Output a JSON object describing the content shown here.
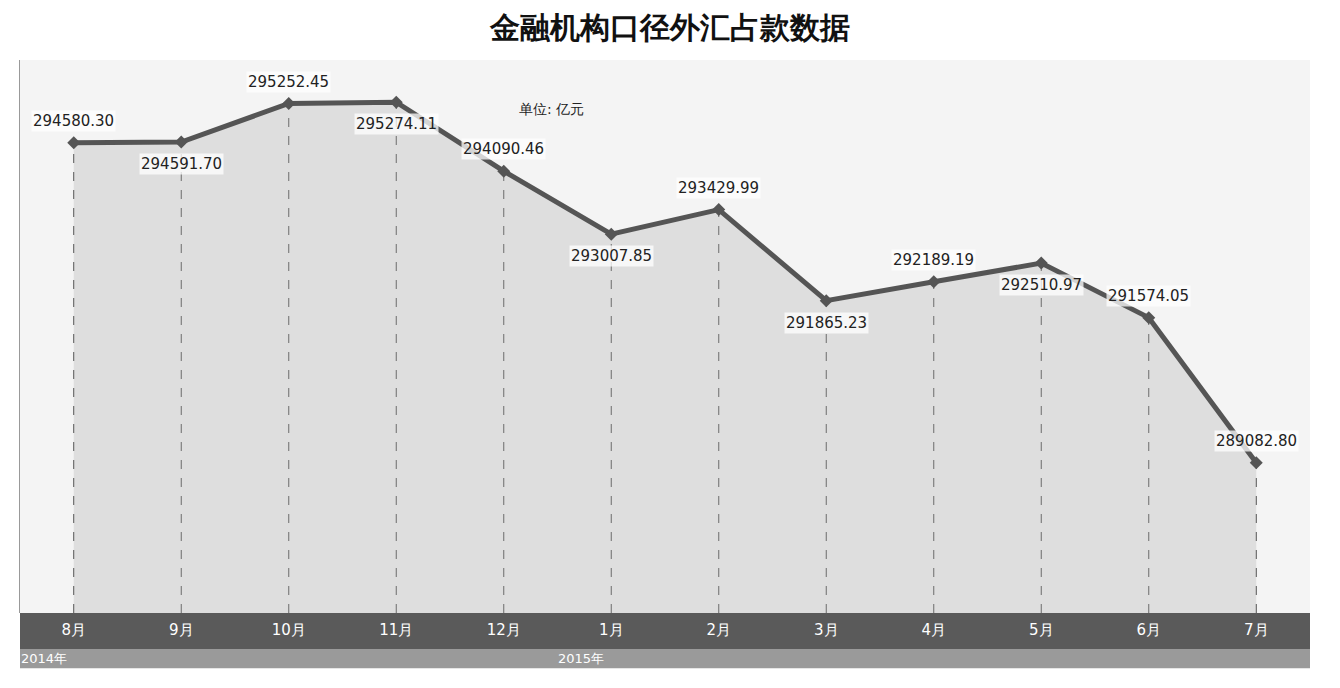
{
  "chart_data": {
    "type": "line",
    "title": "金融机构口径外汇占款数据",
    "subtitle": "单位: 亿元",
    "categories": [
      "8月",
      "9月",
      "10月",
      "11月",
      "12月",
      "1月",
      "2月",
      "3月",
      "4月",
      "5月",
      "6月",
      "7月"
    ],
    "values": [
      294580.3,
      294591.7,
      295252.45,
      295274.11,
      294090.46,
      293007.85,
      293429.99,
      291865.23,
      292189.19,
      292510.97,
      291574.05,
      289082.8
    ],
    "value_labels": [
      "294580.30",
      "294591.70",
      "295252.45",
      "295274.11",
      "294090.46",
      "293007.85",
      "293429.99",
      "291865.23",
      "292189.19",
      "292510.97",
      "291574.05",
      "289082.80"
    ],
    "data_labels": true,
    "color": "#555555",
    "ylim": [
      286500,
      296000
    ],
    "yticks": [],
    "tick_labels": "x",
    "grid": false,
    "annotations": [
      {
        "text": "2014年",
        "category": "8月"
      },
      {
        "text": "2015年",
        "category": "1月"
      }
    ]
  }
}
